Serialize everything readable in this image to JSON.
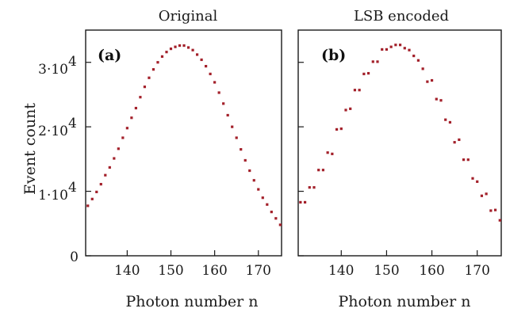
{
  "figure": {
    "ylabel": "Event count",
    "ytick_labels": [
      "0",
      "1·10",
      "2·10",
      "3·10"
    ],
    "ytick_exponent": "4"
  },
  "chart_data": [
    {
      "type": "scatter",
      "title": "Original",
      "panel_label": "(a)",
      "xlabel": "Photon number n",
      "ylabel": "Event count",
      "xlim": [
        130.5,
        175.3
      ],
      "ylim": [
        0,
        35000
      ],
      "xticks": [
        140,
        150,
        160,
        170
      ],
      "yticks": [
        0,
        10000,
        20000,
        30000
      ],
      "marker_color": "#a3202a",
      "grid": false,
      "series": [
        {
          "x": [
            131,
            132,
            133,
            134,
            135,
            136,
            137,
            138,
            139,
            140,
            141,
            142,
            143,
            144,
            145,
            146,
            147,
            148,
            149,
            150,
            151,
            152,
            153,
            154,
            155,
            156,
            157,
            158,
            159,
            160,
            161,
            162,
            163,
            164,
            165,
            166,
            167,
            168,
            169,
            170,
            171,
            172,
            173,
            174,
            175
          ],
          "y": [
            7750,
            8800,
            9900,
            11100,
            12500,
            13700,
            15100,
            16600,
            18300,
            19800,
            21400,
            22900,
            24600,
            26200,
            27600,
            28900,
            30000,
            30900,
            31600,
            32100,
            32400,
            32600,
            32600,
            32300,
            31900,
            31200,
            30400,
            29400,
            28200,
            26900,
            25300,
            23600,
            21800,
            20000,
            18300,
            16500,
            14800,
            13200,
            11700,
            10300,
            9000,
            7950,
            6800,
            5800,
            4800
          ]
        }
      ]
    },
    {
      "type": "scatter",
      "title": "LSB encoded",
      "panel_label": "(b)",
      "xlabel": "Photon number n",
      "xlim": [
        130.5,
        175.3
      ],
      "ylim": [
        0,
        35000
      ],
      "xticks": [
        140,
        150,
        160,
        170
      ],
      "yticks": [
        0,
        10000,
        20000,
        30000
      ],
      "marker_color": "#a3202a",
      "grid": false,
      "series": [
        {
          "x": [
            131,
            132,
            133,
            134,
            135,
            136,
            137,
            138,
            139,
            140,
            141,
            142,
            143,
            144,
            145,
            146,
            147,
            148,
            149,
            150,
            151,
            152,
            153,
            154,
            155,
            156,
            157,
            158,
            159,
            160,
            161,
            162,
            163,
            164,
            165,
            166,
            167,
            168,
            169,
            170,
            171,
            172,
            173,
            174,
            175
          ],
          "y": [
            8300,
            8300,
            10600,
            10600,
            13300,
            13300,
            16000,
            15800,
            19600,
            19700,
            22600,
            22800,
            25700,
            25700,
            28200,
            28300,
            30100,
            30100,
            32000,
            32000,
            32400,
            32700,
            32700,
            32200,
            31900,
            31000,
            30300,
            29000,
            27000,
            27200,
            24300,
            24100,
            21100,
            20700,
            17600,
            18000,
            14900,
            14900,
            12000,
            11500,
            9300,
            9600,
            7000,
            7100,
            5500
          ]
        }
      ]
    }
  ]
}
